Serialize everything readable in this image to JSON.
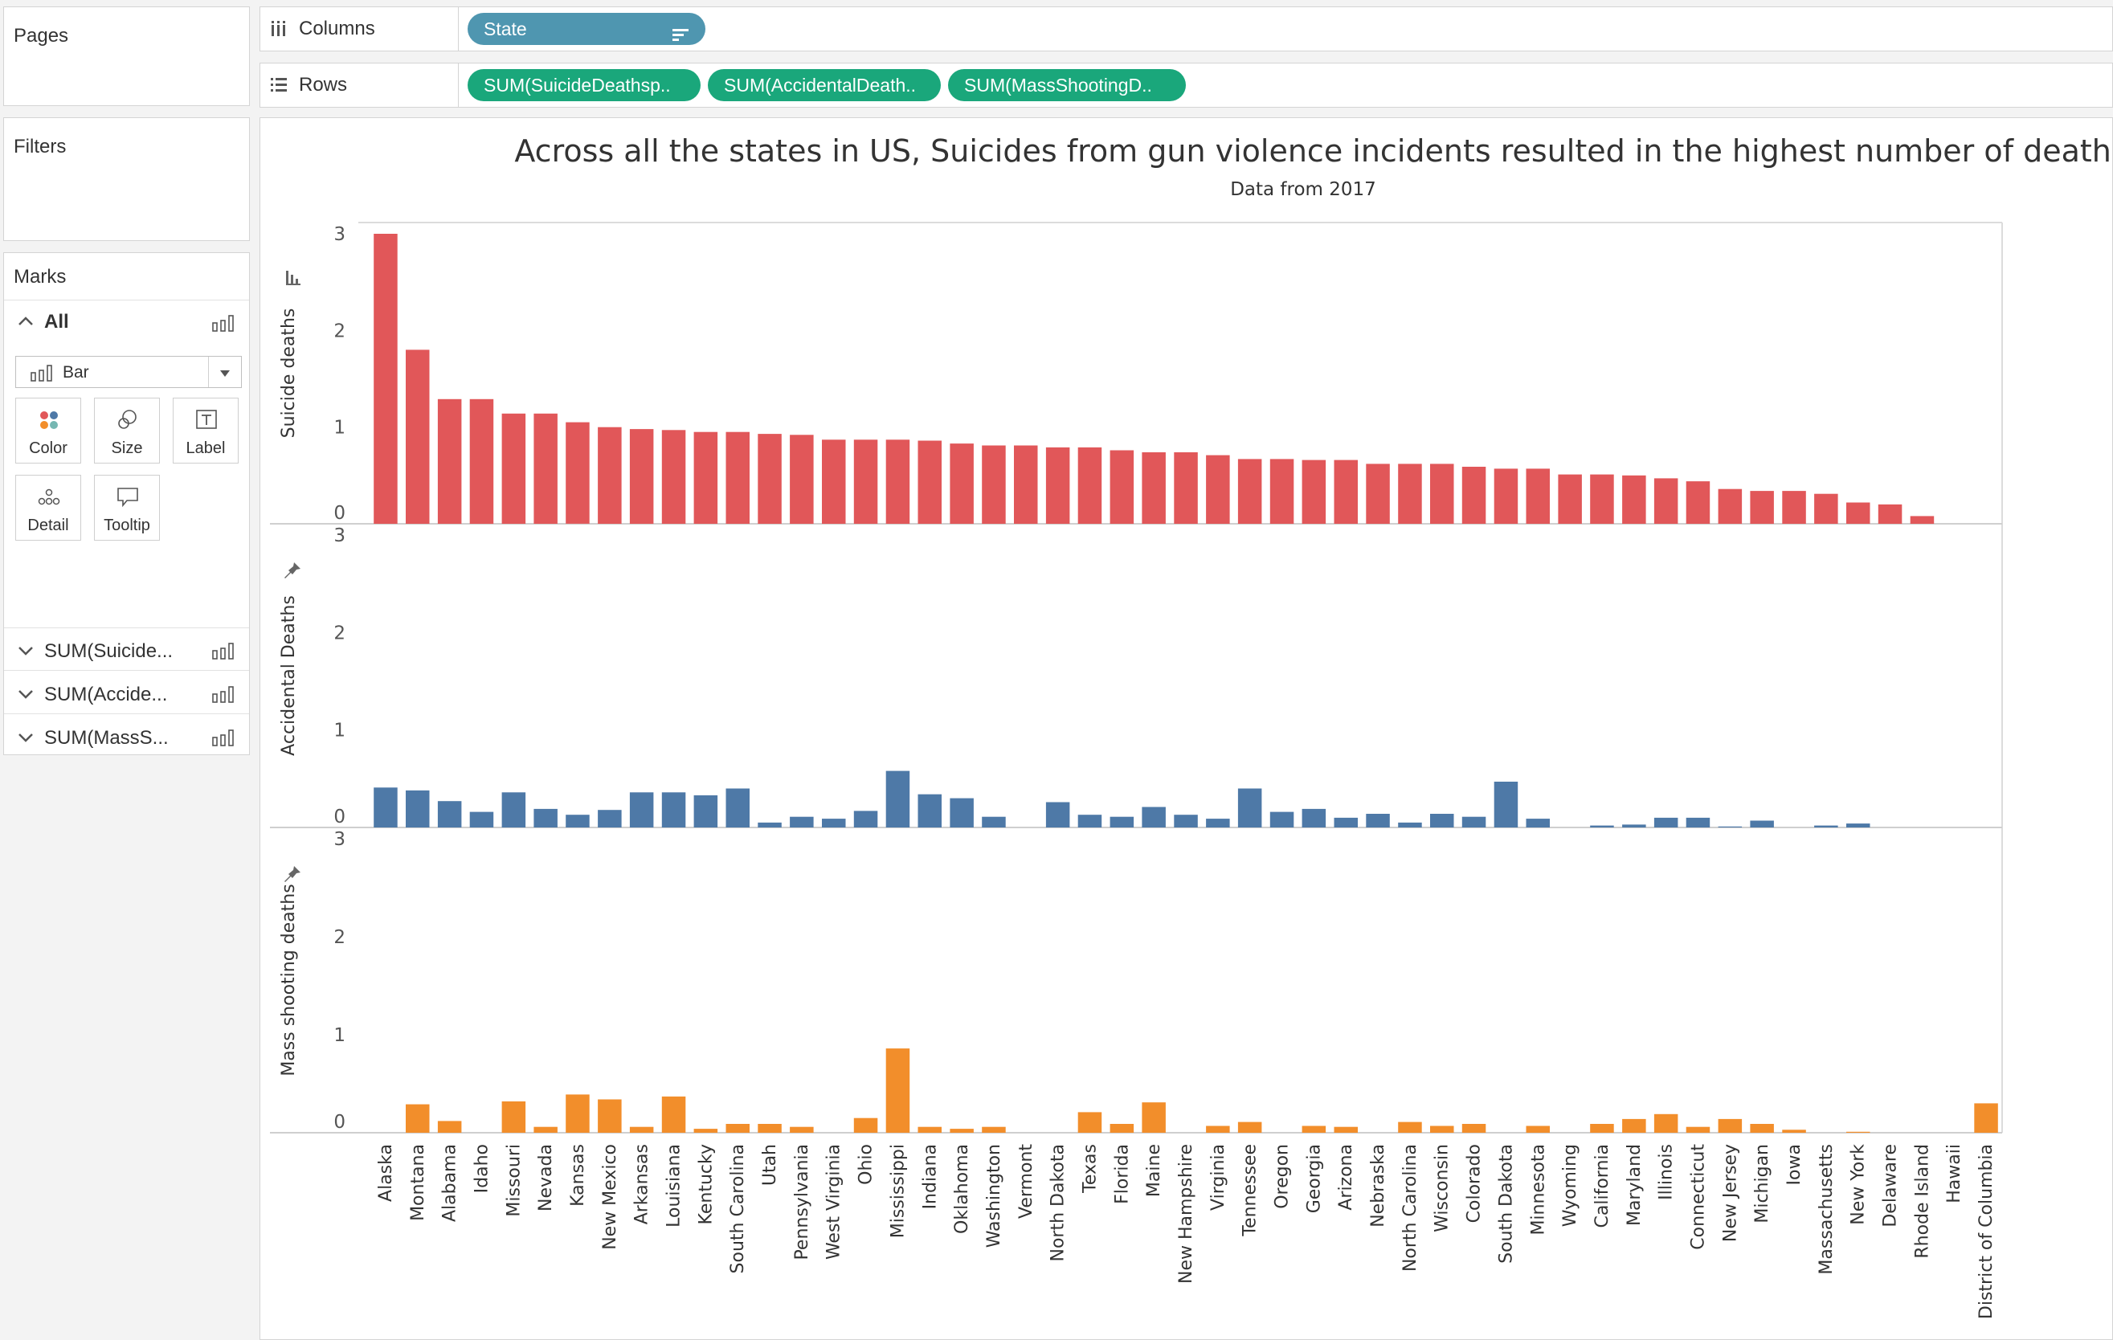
{
  "sidebar": {
    "pages_title": "Pages",
    "filters_title": "Filters",
    "marks_title": "Marks",
    "all_label": "All",
    "mark_type": "Bar",
    "buttons": [
      "Color",
      "Size",
      "Label",
      "Detail",
      "Tooltip"
    ],
    "measures": [
      "SUM(Suicide...",
      "SUM(Accide...",
      "SUM(MassS..."
    ]
  },
  "shelves": {
    "columns_label": "Columns",
    "rows_label": "Rows",
    "column_pill": "State",
    "row_pills": [
      "SUM(SuicideDeathsp..",
      "SUM(AccidentalDeath..",
      "SUM(MassShootingD.."
    ]
  },
  "colors": {
    "suicide": "#e15759",
    "accidental": "#4e79a7",
    "mass": "#f28e2b"
  },
  "chart_data": {
    "type": "bar",
    "title": "Across all the states in US, Suicides from gun violence incidents resulted in the highest number of deaths",
    "subtitle": "Data from 2017",
    "categories": [
      "Alaska",
      "Montana",
      "Alabama",
      "Idaho",
      "Missouri",
      "Nevada",
      "Kansas",
      "New Mexico",
      "Arkansas",
      "Louisiana",
      "Kentucky",
      "South Carolina",
      "Utah",
      "Pennsylvania",
      "West Virginia",
      "Ohio",
      "Mississippi",
      "Indiana",
      "Oklahoma",
      "Washington",
      "Vermont",
      "North Dakota",
      "Texas",
      "Florida",
      "Maine",
      "New Hampshire",
      "Virginia",
      "Tennessee",
      "Oregon",
      "Georgia",
      "Arizona",
      "Nebraska",
      "North Carolina",
      "Wisconsin",
      "Colorado",
      "South Dakota",
      "Minnesota",
      "Wyoming",
      "California",
      "Maryland",
      "Illinois",
      "Connecticut",
      "New Jersey",
      "Michigan",
      "Iowa",
      "Massachusetts",
      "New York",
      "Delaware",
      "Rhode Island",
      "Hawaii",
      "District of Columbia"
    ],
    "ylim": [
      0,
      3
    ],
    "yticks": [
      0,
      1,
      2,
      3
    ],
    "series": [
      {
        "name": "Suicide deaths",
        "values": [
          3.0,
          1.8,
          1.29,
          1.29,
          1.14,
          1.14,
          1.05,
          1.0,
          0.98,
          0.97,
          0.95,
          0.95,
          0.93,
          0.92,
          0.87,
          0.87,
          0.87,
          0.86,
          0.83,
          0.81,
          0.81,
          0.79,
          0.79,
          0.76,
          0.74,
          0.74,
          0.71,
          0.67,
          0.67,
          0.66,
          0.66,
          0.62,
          0.62,
          0.62,
          0.59,
          0.57,
          0.57,
          0.51,
          0.51,
          0.5,
          0.47,
          0.44,
          0.36,
          0.34,
          0.34,
          0.31,
          0.22,
          0.2,
          0.08,
          0,
          0
        ]
      },
      {
        "name": "Accidental Deaths",
        "values": [
          0.41,
          0.38,
          0.27,
          0.16,
          0.36,
          0.19,
          0.13,
          0.18,
          0.36,
          0.36,
          0.33,
          0.4,
          0.05,
          0.11,
          0.09,
          0.17,
          0.58,
          0.34,
          0.3,
          0.11,
          0,
          0.26,
          0.13,
          0.11,
          0.21,
          0.13,
          0.09,
          0.4,
          0.16,
          0.19,
          0.1,
          0.14,
          0.05,
          0.14,
          0.11,
          0.47,
          0.09,
          0,
          0.02,
          0.03,
          0.1,
          0.1,
          0.01,
          0.07,
          0,
          0.02,
          0.04,
          0,
          0,
          0,
          0
        ]
      },
      {
        "name": "Mass shooting deaths",
        "values": [
          0,
          0.29,
          0.12,
          0,
          0.32,
          0.06,
          0.39,
          0.34,
          0.06,
          0.37,
          0.04,
          0.09,
          0.09,
          0.06,
          0,
          0.15,
          0.86,
          0.06,
          0.04,
          0.06,
          0,
          0,
          0.21,
          0.09,
          0.31,
          0,
          0.07,
          0.11,
          0,
          0.07,
          0.06,
          0,
          0.11,
          0.07,
          0.09,
          0,
          0.07,
          0,
          0.09,
          0.14,
          0.19,
          0.06,
          0.14,
          0.09,
          0.03,
          0,
          0.01,
          0,
          0,
          0,
          0.3
        ]
      }
    ]
  }
}
